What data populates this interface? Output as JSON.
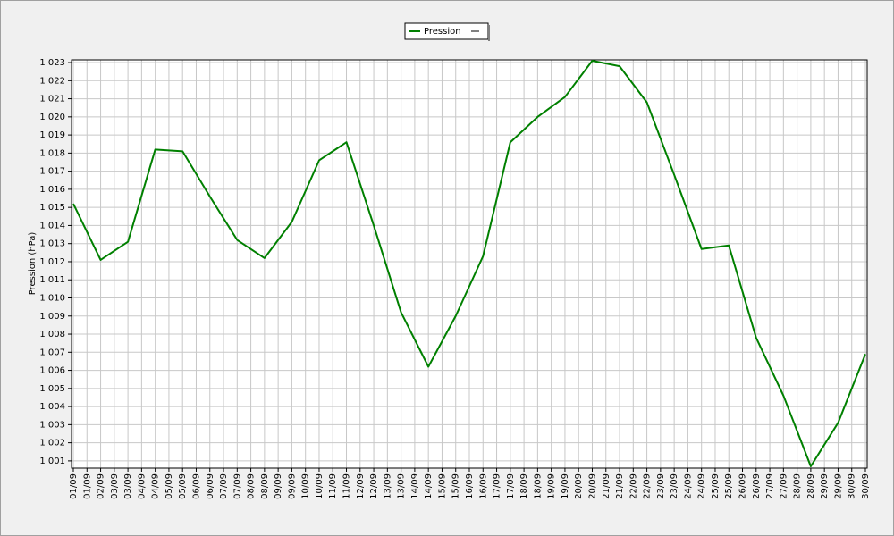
{
  "chart_data": {
    "type": "line",
    "y_label": "Pression (hPa)",
    "x": [
      1,
      2,
      3,
      4,
      5,
      6,
      7,
      8,
      9,
      10,
      11,
      12,
      13,
      14,
      15,
      16,
      17,
      18,
      19,
      20,
      21,
      22,
      23,
      24,
      25,
      26,
      27,
      28,
      29,
      30
    ],
    "xlim": [
      1,
      30
    ],
    "xticks": [
      {
        "value": 1,
        "label": "01/09"
      },
      {
        "value": 1.5,
        "label": "01/09"
      },
      {
        "value": 2,
        "label": "02/09"
      },
      {
        "value": 2.5,
        "label": "03/09"
      },
      {
        "value": 3,
        "label": "03/09"
      },
      {
        "value": 3.5,
        "label": "04/09"
      },
      {
        "value": 4,
        "label": "04/09"
      },
      {
        "value": 4.5,
        "label": "05/09"
      },
      {
        "value": 5,
        "label": "05/09"
      },
      {
        "value": 5.5,
        "label": "06/09"
      },
      {
        "value": 6,
        "label": "06/09"
      },
      {
        "value": 6.5,
        "label": "07/09"
      },
      {
        "value": 7,
        "label": "07/09"
      },
      {
        "value": 7.5,
        "label": "08/09"
      },
      {
        "value": 8,
        "label": "08/09"
      },
      {
        "value": 8.5,
        "label": "09/09"
      },
      {
        "value": 9,
        "label": "09/09"
      },
      {
        "value": 9.5,
        "label": "10/09"
      },
      {
        "value": 10,
        "label": "10/09"
      },
      {
        "value": 10.5,
        "label": "11/09"
      },
      {
        "value": 11,
        "label": "11/09"
      },
      {
        "value": 11.5,
        "label": "12/09"
      },
      {
        "value": 12,
        "label": "12/09"
      },
      {
        "value": 12.5,
        "label": "13/09"
      },
      {
        "value": 13,
        "label": "13/09"
      },
      {
        "value": 13.5,
        "label": "14/09"
      },
      {
        "value": 14,
        "label": "14/09"
      },
      {
        "value": 14.5,
        "label": "15/09"
      },
      {
        "value": 15,
        "label": "15/09"
      },
      {
        "value": 15.5,
        "label": "16/09"
      },
      {
        "value": 16,
        "label": "16/09"
      },
      {
        "value": 16.5,
        "label": "17/09"
      },
      {
        "value": 17,
        "label": "17/09"
      },
      {
        "value": 17.5,
        "label": "18/09"
      },
      {
        "value": 18,
        "label": "18/09"
      },
      {
        "value": 18.5,
        "label": "19/09"
      },
      {
        "value": 19,
        "label": "19/09"
      },
      {
        "value": 19.5,
        "label": "20/09"
      },
      {
        "value": 20,
        "label": "20/09"
      },
      {
        "value": 20.5,
        "label": "21/09"
      },
      {
        "value": 21,
        "label": "21/09"
      },
      {
        "value": 21.5,
        "label": "22/09"
      },
      {
        "value": 22,
        "label": "22/09"
      },
      {
        "value": 22.5,
        "label": "23/09"
      },
      {
        "value": 23,
        "label": "23/09"
      },
      {
        "value": 23.5,
        "label": "24/09"
      },
      {
        "value": 24,
        "label": "24/09"
      },
      {
        "value": 24.5,
        "label": "25/09"
      },
      {
        "value": 25,
        "label": "25/09"
      },
      {
        "value": 25.5,
        "label": "26/09"
      },
      {
        "value": 26,
        "label": "26/09"
      },
      {
        "value": 26.5,
        "label": "27/09"
      },
      {
        "value": 27,
        "label": "27/09"
      },
      {
        "value": 27.5,
        "label": "28/09"
      },
      {
        "value": 28,
        "label": "28/09"
      },
      {
        "value": 28.5,
        "label": "29/09"
      },
      {
        "value": 29,
        "label": "29/09"
      },
      {
        "value": 29.5,
        "label": "30/09"
      },
      {
        "value": 30,
        "label": "30/09"
      }
    ],
    "ylim": [
      1000.6,
      1023.15
    ],
    "yticks": [
      {
        "value": 1001,
        "label": "1 001"
      },
      {
        "value": 1002,
        "label": "1 002"
      },
      {
        "value": 1003,
        "label": "1 003"
      },
      {
        "value": 1004,
        "label": "1 004"
      },
      {
        "value": 1005,
        "label": "1 005"
      },
      {
        "value": 1006,
        "label": "1 006"
      },
      {
        "value": 1007,
        "label": "1 007"
      },
      {
        "value": 1008,
        "label": "1 008"
      },
      {
        "value": 1009,
        "label": "1 009"
      },
      {
        "value": 1010,
        "label": "1 010"
      },
      {
        "value": 1011,
        "label": "1 011"
      },
      {
        "value": 1012,
        "label": "1 012"
      },
      {
        "value": 1013,
        "label": "1 013"
      },
      {
        "value": 1014,
        "label": "1 014"
      },
      {
        "value": 1015,
        "label": "1 015"
      },
      {
        "value": 1016,
        "label": "1 016"
      },
      {
        "value": 1017,
        "label": "1 017"
      },
      {
        "value": 1018,
        "label": "1 018"
      },
      {
        "value": 1019,
        "label": "1 019"
      },
      {
        "value": 1020,
        "label": "1 020"
      },
      {
        "value": 1021,
        "label": "1 021"
      },
      {
        "value": 1022,
        "label": "1 022"
      },
      {
        "value": 1023,
        "label": "1 023"
      }
    ],
    "grid": true,
    "legend": "top",
    "series": [
      {
        "name": "Pression",
        "color": "#008000",
        "values": [
          1015.2,
          1012.1,
          1013.1,
          1018.2,
          1018.1,
          1015.6,
          1013.2,
          1012.2,
          1014.2,
          1017.6,
          1018.6,
          1014.0,
          1009.2,
          1006.2,
          1009.0,
          1012.3,
          1018.6,
          1020.0,
          1021.1,
          1023.1,
          1022.8,
          1020.8,
          1016.8,
          1012.7,
          1012.9,
          1007.8,
          1004.6,
          1000.7,
          1003.1,
          1006.9
        ]
      }
    ]
  }
}
